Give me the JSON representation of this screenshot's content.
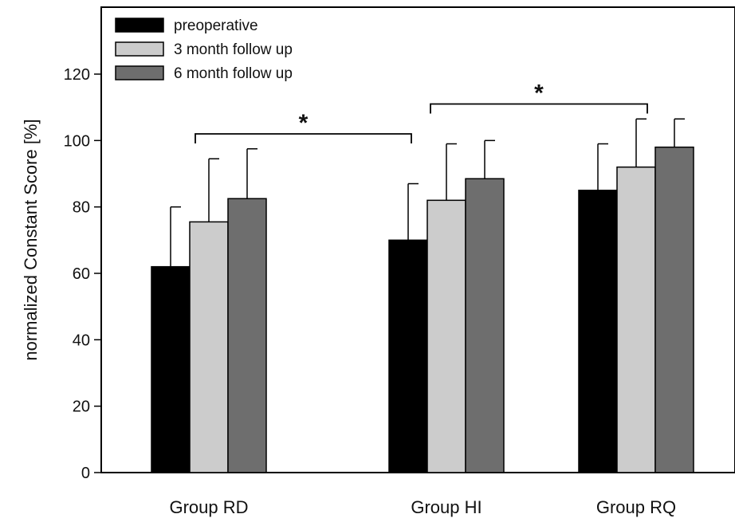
{
  "chart_data": {
    "type": "bar",
    "title": "",
    "xlabel": "",
    "ylabel": "normalized Constant Score [%]",
    "ylim": [
      0,
      140
    ],
    "yticks": [
      0,
      20,
      40,
      60,
      80,
      100,
      120
    ],
    "grid": false,
    "legend_position": "top-left",
    "categories": [
      "Group RD",
      "Group HI",
      "Group RQ"
    ],
    "series": [
      {
        "name": "preoperative",
        "color": "#000000",
        "values": [
          62,
          70,
          85
        ],
        "error": [
          18,
          17,
          14
        ]
      },
      {
        "name": "3 month follow up",
        "color": "#cccccc",
        "values": [
          75.5,
          82,
          92
        ],
        "error": [
          19,
          17,
          14.5
        ]
      },
      {
        "name": "6 month follow up",
        "color": "#6e6e6e",
        "values": [
          82.5,
          88.5,
          98
        ],
        "error": [
          15,
          11.5,
          8.5
        ]
      }
    ],
    "significance": [
      {
        "label": "*",
        "from": "Group RD",
        "to": "Group HI",
        "y": 102
      },
      {
        "label": "*",
        "from": "Group HI",
        "to": "Group RQ",
        "y": 111
      }
    ]
  }
}
